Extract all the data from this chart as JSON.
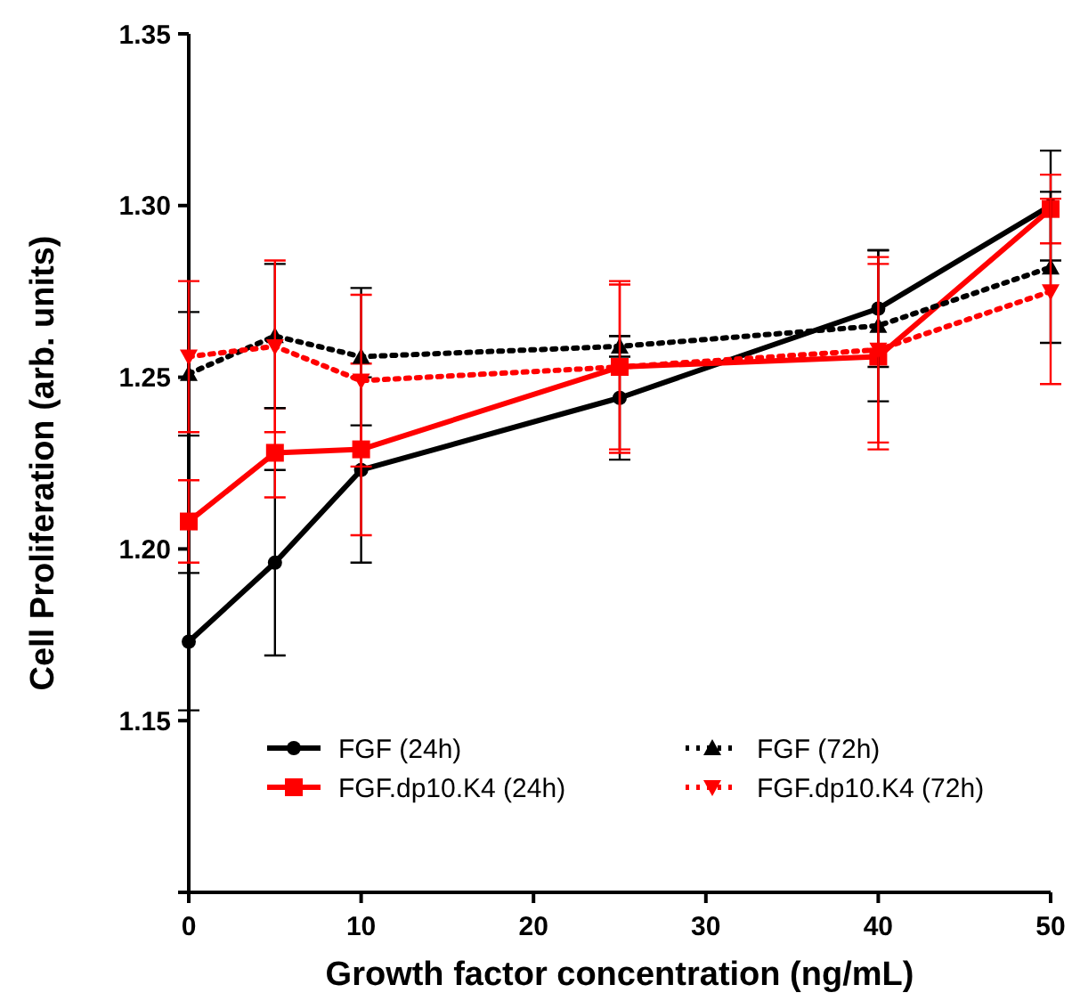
{
  "chart_data": {
    "type": "line",
    "xlabel": "Growth factor concentration (ng/mL)",
    "ylabel": "Cell Proliferation (arb. units)",
    "x": [
      0,
      5,
      10,
      25,
      40,
      50
    ],
    "xlim": [
      0,
      50
    ],
    "xticks": [
      0,
      10,
      20,
      30,
      40,
      50
    ],
    "ylim": [
      1.1,
      1.35
    ],
    "yticks": [
      {
        "value": 1.1,
        "label": null
      },
      {
        "value": 1.15,
        "label": "1.15"
      },
      {
        "value": 1.2,
        "label": "1.20"
      },
      {
        "value": 1.25,
        "label": "1.25"
      },
      {
        "value": 1.3,
        "label": "1.30"
      },
      {
        "value": 1.35,
        "label": "1.35"
      }
    ],
    "grid": false,
    "legend": "bottom",
    "series": [
      {
        "name": "FGF (24h)",
        "color": "#000000",
        "marker": "circle",
        "line_style": "solid",
        "values": [
          1.173,
          1.196,
          1.223,
          1.244,
          1.27,
          1.3
        ],
        "errors": [
          0.02,
          0.027,
          0.027,
          0.018,
          0.017,
          0.016
        ]
      },
      {
        "name": "FGF.dp10.K4 (24h)",
        "color": "#ff0000",
        "marker": "square",
        "line_style": "solid",
        "values": [
          1.208,
          1.228,
          1.229,
          1.253,
          1.256,
          1.299
        ],
        "errors": [
          0.012,
          0.013,
          0.025,
          0.024,
          0.027,
          0.01
        ]
      },
      {
        "name": "FGF (72h)",
        "color": "#000000",
        "marker": "triangle",
        "line_style": "dotted",
        "values": [
          1.251,
          1.262,
          1.256,
          1.259,
          1.265,
          1.282
        ],
        "errors": [
          0.018,
          0.021,
          0.02,
          0.003,
          0.022,
          0.022
        ]
      },
      {
        "name": "FGF.dp10.K4 (72h)",
        "color": "#ff0000",
        "marker": "triangle-down",
        "line_style": "dotted",
        "values": [
          1.256,
          1.259,
          1.249,
          1.253,
          1.258,
          1.275
        ],
        "errors": [
          0.022,
          0.025,
          0.025,
          0.025,
          0.027,
          0.027
        ]
      }
    ]
  }
}
